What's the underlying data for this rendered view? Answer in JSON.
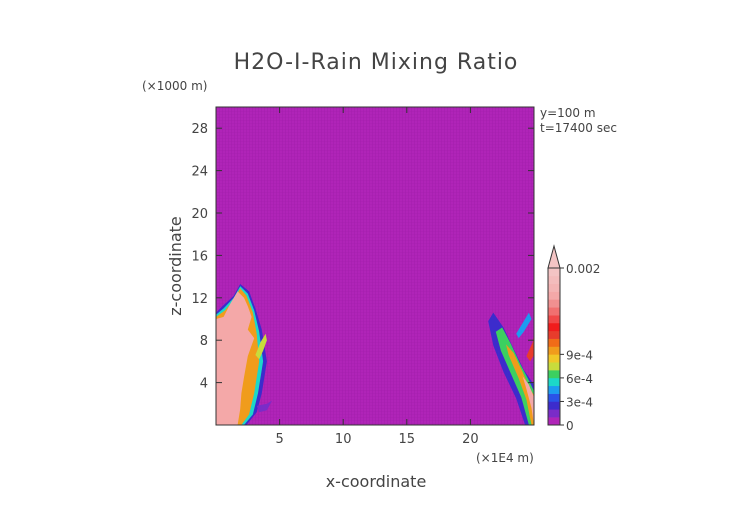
{
  "chart_data": {
    "type": "heatmap",
    "title": "H2O-I-Rain Mixing Ratio",
    "xlabel": "x-coordinate",
    "ylabel": "z-coordinate",
    "x_unit_label": "(×1E4 m)",
    "y_unit_label": "(×1000 m)",
    "annotations": [
      "y=100 m",
      "t=17400 sec"
    ],
    "xlim": [
      0,
      25
    ],
    "ylim": [
      0,
      30
    ],
    "x_ticks": [
      5,
      10,
      15,
      20
    ],
    "y_ticks": [
      4,
      8,
      12,
      16,
      20,
      24,
      28
    ],
    "x_tick_labels": [
      "5",
      "10",
      "15",
      "20"
    ],
    "y_tick_labels": [
      "4",
      "8",
      "12",
      "16",
      "20",
      "24",
      "28"
    ],
    "background_color": "#b024b8",
    "colorbar": {
      "levels": [
        0,
        0.0001,
        0.0002,
        0.0003,
        0.0004,
        0.0005,
        0.0006,
        0.0007,
        0.0008,
        0.0009,
        0.001,
        0.0011,
        0.0012,
        0.0013,
        0.0014,
        0.0015,
        0.0016,
        0.0017,
        0.0018,
        0.0019,
        0.002
      ],
      "tick_values": [
        0,
        0.0003,
        0.0006,
        0.0009,
        0.002
      ],
      "tick_labels": [
        "0",
        "3e-4",
        "6e-4",
        "9e-4",
        "0.002"
      ],
      "colors": [
        "#b024b8",
        "#7a2cc8",
        "#3c2ccc",
        "#2a52e8",
        "#1c9cf0",
        "#1cd8c8",
        "#3cd060",
        "#c8dc3c",
        "#f0c828",
        "#f09c1c",
        "#f06c18",
        "#e83c2c",
        "#f01c1c",
        "#f04848",
        "#f07070",
        "#f09090",
        "#f4a8a8",
        "#f4b4b4",
        "#f4bcbc",
        "#f4c4c4"
      ],
      "extend": "max"
    },
    "regions": [
      {
        "name": "left rain shaft",
        "x_range": [
          0,
          4
        ],
        "z_range": [
          0,
          13.2
        ],
        "max_value": 0.002
      },
      {
        "name": "right rain shaft",
        "x_range": [
          21.5,
          25
        ],
        "z_range": [
          0,
          10.5
        ],
        "max_value": 0.002
      }
    ]
  }
}
